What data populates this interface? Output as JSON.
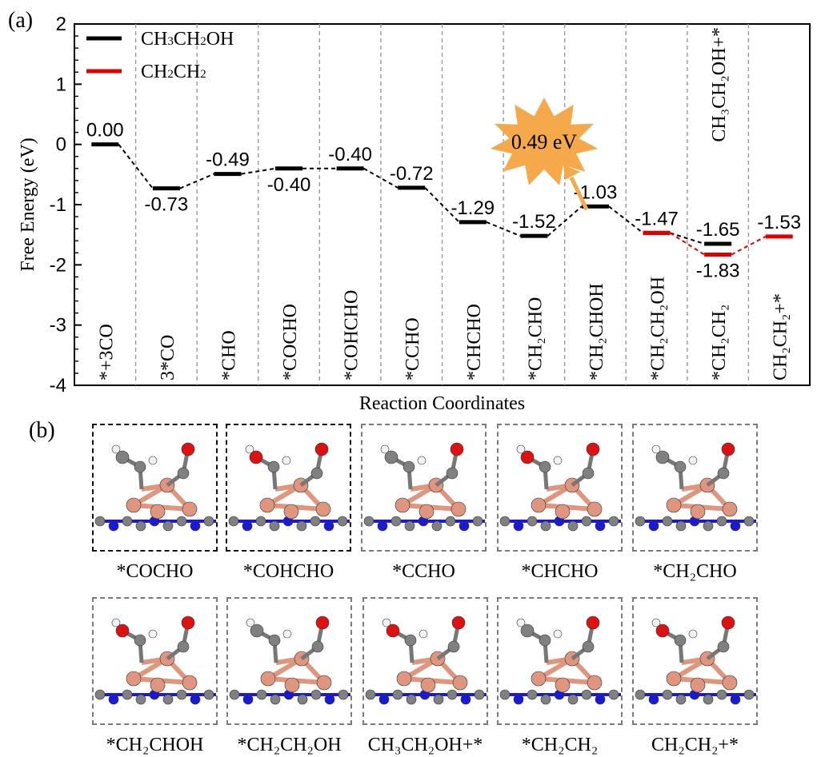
{
  "panel_a": {
    "label": "(a)"
  },
  "panel_b": {
    "label": "(b)"
  },
  "chart_data": {
    "type": "line",
    "title": "",
    "xlabel": "Reaction Coordinates",
    "ylabel": "Free Energy (eV)",
    "ylim": [
      -4,
      2
    ],
    "yticks": [
      "2",
      "1",
      "0",
      "-1",
      "-2",
      "-3",
      "-4"
    ],
    "grid": "vertical dashed separators between steps",
    "legend_position": "top-left",
    "series": [
      {
        "name": "CH3CH2OH",
        "color": "#000000",
        "x": [
          "*+3CO",
          "3*CO",
          "*CHO",
          "*COCHO",
          "*COHCHO",
          "*CCHO",
          "*CHCHO",
          "*CH2CHO",
          "*CH2CHOH",
          "*CH2CH2OH",
          "CH3CH2OH+*"
        ],
        "values": [
          0.0,
          -0.73,
          -0.49,
          -0.4,
          -0.4,
          -0.72,
          -1.29,
          -1.52,
          -1.03,
          -1.47,
          -1.65
        ]
      },
      {
        "name": "CH2CH2",
        "color": "#e00000",
        "x": [
          "*CH2CH2OH",
          "*CH2CH2",
          "CH2CH2+*"
        ],
        "values": [
          -1.47,
          -1.83,
          -1.53
        ]
      }
    ],
    "legend": [
      {
        "main": "CH",
        "sub1": "3",
        "mid": "CH",
        "sub2": "2",
        "tail": "OH",
        "color": "#000000"
      },
      {
        "main": "CH",
        "sub1": "2",
        "mid": "CH",
        "sub2": "2",
        "tail": "",
        "color": "#e00000"
      }
    ],
    "step_labels": [
      "*+3CO",
      "3*CO",
      "*CHO",
      "*COCHO",
      "*COHCHO",
      "*CCHO",
      "*CHCHO",
      "*CH₂CHO",
      "*CH₂CHOH",
      "*CH₂CH₂OH",
      "*CH₂CH₂",
      "CH₂CH₂+*"
    ],
    "top_label": "CH₃CH₂OH+*",
    "value_labels": [
      {
        "text": "0.00",
        "step": 0,
        "value": 0.0,
        "pos": "above"
      },
      {
        "text": "-0.73",
        "step": 1,
        "value": -0.73,
        "pos": "below"
      },
      {
        "text": "-0.49",
        "step": 2,
        "value": -0.49,
        "pos": "above"
      },
      {
        "text": "-0.40",
        "step": 3,
        "value": -0.4,
        "pos": "below"
      },
      {
        "text": "-0.40",
        "step": 4,
        "value": -0.4,
        "pos": "above"
      },
      {
        "text": "-0.72",
        "step": 5,
        "value": -0.72,
        "pos": "above"
      },
      {
        "text": "-1.29",
        "step": 6,
        "value": -1.29,
        "pos": "above"
      },
      {
        "text": "-1.52",
        "step": 7,
        "value": -1.52,
        "pos": "above"
      },
      {
        "text": "-1.03",
        "step": 8,
        "value": -1.03,
        "pos": "above"
      },
      {
        "text": "-1.47",
        "step": 9,
        "value": -1.47,
        "pos": "above"
      },
      {
        "text": "-1.65",
        "step": 10,
        "value": -1.65,
        "pos": "above"
      },
      {
        "text": "-1.83",
        "step": 10,
        "value": -1.83,
        "pos": "below"
      },
      {
        "text": "-1.53",
        "step": 11,
        "value": -1.53,
        "pos": "above"
      }
    ],
    "annotation": {
      "text": "0.49 eV",
      "color": "#f5a94a"
    }
  },
  "structures": [
    {
      "label": "*COCHO",
      "highlight": true
    },
    {
      "label": "*COHCHO",
      "highlight": true
    },
    {
      "label": "*CCHO",
      "highlight": false
    },
    {
      "label": "*CHCHO",
      "highlight": false
    },
    {
      "label": "*CH₂CHO",
      "highlight": false
    },
    {
      "label": "*CH₂CHOH",
      "highlight": false
    },
    {
      "label": "*CH₂CH₂OH",
      "highlight": false
    },
    {
      "label": "CH₃CH₂OH+*",
      "highlight": false
    },
    {
      "label": "*CH₂CH₂",
      "highlight": false
    },
    {
      "label": "CH₂CH₂+*",
      "highlight": false
    }
  ],
  "atom_colors": {
    "Cu": "#e0967e",
    "N": "#1a1ad6",
    "C": "#808080",
    "O": "#dd1111",
    "H": "#f2f2f2"
  }
}
